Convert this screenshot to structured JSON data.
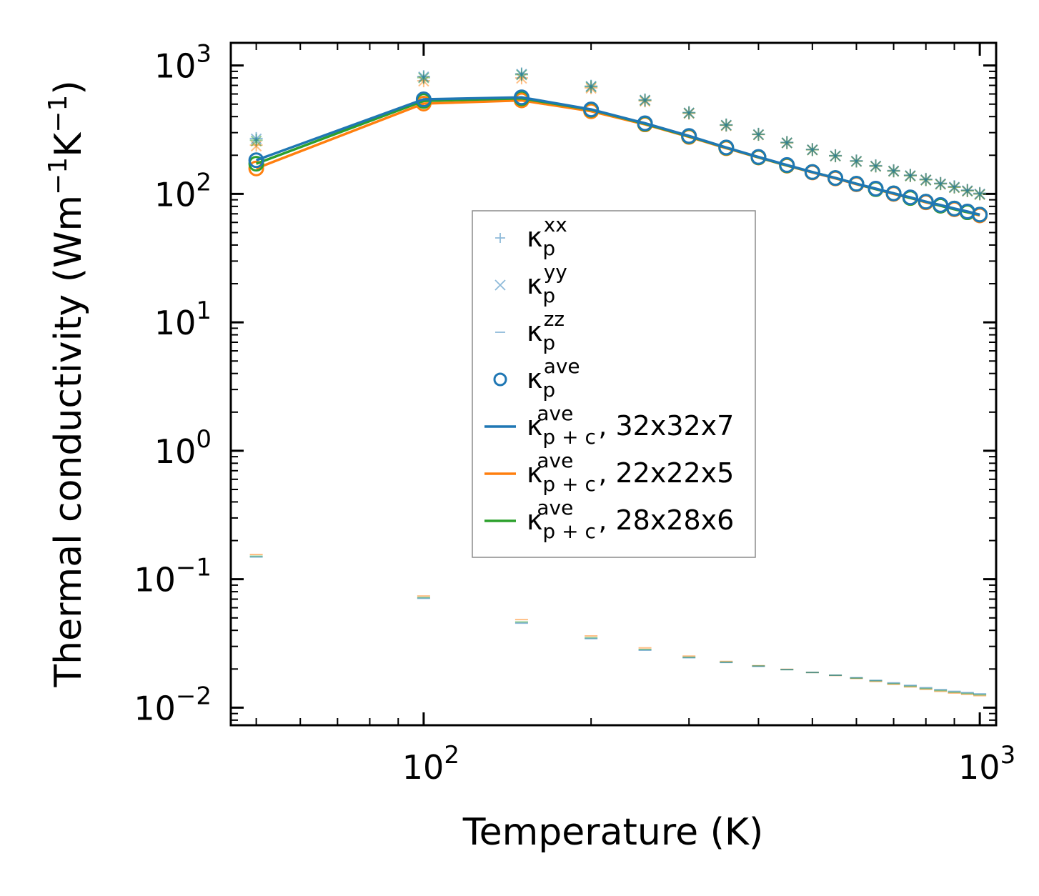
{
  "chart_data": {
    "type": "line",
    "xlabel": "Temperature (K)",
    "ylabel": "Thermal conductivity (Wm",
    "ylabel_parts": [
      "Thermal conductivity (Wm",
      "−1",
      "K",
      "−1",
      ")"
    ],
    "xscale": "log",
    "yscale": "log",
    "xlim": [
      45,
      1070
    ],
    "ylim": [
      0.0073,
      1500
    ],
    "x_ticks": [
      {
        "value": 100,
        "base": "10",
        "exp": "2"
      },
      {
        "value": 1000,
        "base": "10",
        "exp": "3"
      }
    ],
    "y_ticks": [
      {
        "value": 0.01,
        "base": "10",
        "exp": "−2"
      },
      {
        "value": 0.1,
        "base": "10",
        "exp": "−1"
      },
      {
        "value": 1,
        "base": "10",
        "exp": "0"
      },
      {
        "value": 10,
        "base": "10",
        "exp": "1"
      },
      {
        "value": 100,
        "base": "10",
        "exp": "2"
      },
      {
        "value": 1000,
        "base": "10",
        "exp": "3"
      }
    ],
    "x": [
      50,
      100,
      150,
      200,
      250,
      300,
      350,
      400,
      450,
      500,
      550,
      600,
      650,
      700,
      750,
      800,
      850,
      900,
      950,
      1000
    ],
    "legend": {
      "entries": [
        {
          "base": "κ",
          "sub": "p",
          "sup": "xx",
          "suffix": "",
          "marker": "plus"
        },
        {
          "base": "κ",
          "sub": "p",
          "sup": "yy",
          "suffix": "",
          "marker": "x"
        },
        {
          "base": "κ",
          "sub": "p",
          "sup": "zz",
          "suffix": "",
          "marker": "dash"
        },
        {
          "base": "κ",
          "sub": "p",
          "sup": "ave",
          "suffix": "",
          "marker": "circle"
        },
        {
          "base": "κ",
          "sub": "p + c",
          "sup": "ave",
          "suffix": ", 32x32x7",
          "marker": "line-blue"
        },
        {
          "base": "κ",
          "sub": "p + c",
          "sup": "ave",
          "suffix": ", 22x22x5",
          "marker": "line-orange"
        },
        {
          "base": "κ",
          "sub": "p + c",
          "sup": "ave",
          "suffix": ", 28x28x6",
          "marker": "line-green"
        }
      ]
    },
    "series": [
      {
        "name": "32x32x7",
        "color": "#1f77b4",
        "kxx": [
          270,
          820,
          860,
          690,
          540,
          430,
          345,
          292,
          252,
          222,
          199,
          181,
          166,
          152,
          140,
          130,
          121,
          114,
          107,
          101
        ],
        "kyy": [
          268,
          815,
          855,
          688,
          538,
          428,
          343,
          290,
          250,
          221,
          198,
          180,
          165,
          151,
          139,
          129,
          120,
          113,
          106,
          100
        ],
        "kzz": [
          0.149,
          0.071,
          0.0455,
          0.0345,
          0.028,
          0.0245,
          0.0225,
          0.021,
          0.0198,
          0.0188,
          0.0179,
          0.0171,
          0.0163,
          0.0156,
          0.0149,
          0.0143,
          0.0138,
          0.0134,
          0.0131,
          0.0128
        ],
        "kave": [
          183,
          545,
          565,
          455,
          355,
          283,
          230,
          194,
          168,
          148,
          133,
          120,
          110,
          101,
          94,
          87,
          82,
          77,
          73,
          69
        ],
        "kpc": [
          183,
          545,
          565,
          455,
          355,
          283,
          230,
          194,
          168,
          148,
          133,
          120,
          110,
          101,
          94,
          87,
          82,
          77,
          73,
          69
        ]
      },
      {
        "name": "22x22x5",
        "color": "#ff7f0e",
        "kxx": [
          240,
          760,
          800,
          670,
          530,
          425,
          342,
          290,
          250,
          221,
          198,
          180,
          165,
          151,
          139,
          129,
          120,
          113,
          106,
          100
        ],
        "kyy": [
          236,
          755,
          795,
          665,
          527,
          423,
          340,
          288,
          249,
          220,
          197,
          179,
          164,
          150,
          138,
          128,
          119,
          112,
          105,
          99
        ],
        "kzz": [
          0.156,
          0.074,
          0.0485,
          0.0362,
          0.0292,
          0.0252,
          0.0229,
          0.0212,
          0.0199,
          0.0188,
          0.0178,
          0.0169,
          0.016,
          0.0152,
          0.0145,
          0.0139,
          0.0134,
          0.013,
          0.0127,
          0.0124
        ],
        "kave": [
          158,
          505,
          535,
          440,
          348,
          278,
          227,
          192,
          166,
          147,
          132,
          119,
          109,
          100,
          93,
          86,
          81,
          76,
          72,
          68
        ],
        "kpc": [
          158,
          505,
          535,
          440,
          348,
          278,
          227,
          192,
          166,
          147,
          132,
          119,
          109,
          100,
          93,
          86,
          81,
          76,
          72,
          68
        ]
      },
      {
        "name": "28x28x6",
        "color": "#2ca02c",
        "kxx": [
          262,
          805,
          850,
          685,
          537,
          428,
          344,
          291,
          251,
          221,
          198,
          180,
          165,
          151,
          139,
          129,
          120,
          113,
          106,
          100
        ],
        "kyy": [
          258,
          800,
          845,
          682,
          535,
          426,
          342,
          289,
          250,
          220,
          197,
          179,
          164,
          150,
          138,
          128,
          119,
          112,
          105,
          99
        ],
        "kzz": [
          0.151,
          0.072,
          0.0465,
          0.035,
          0.0284,
          0.0247,
          0.0226,
          0.0211,
          0.0198,
          0.0188,
          0.0179,
          0.017,
          0.0162,
          0.0154,
          0.0147,
          0.0141,
          0.0136,
          0.0132,
          0.0129,
          0.0126
        ],
        "kave": [
          172,
          530,
          555,
          452,
          352,
          281,
          229,
          193,
          167,
          148,
          133,
          120,
          109,
          101,
          93,
          87,
          81,
          77,
          72,
          69
        ],
        "kpc": [
          172,
          530,
          555,
          452,
          352,
          281,
          229,
          193,
          167,
          148,
          133,
          120,
          109,
          101,
          93,
          87,
          81,
          76,
          72,
          69
        ]
      }
    ]
  }
}
